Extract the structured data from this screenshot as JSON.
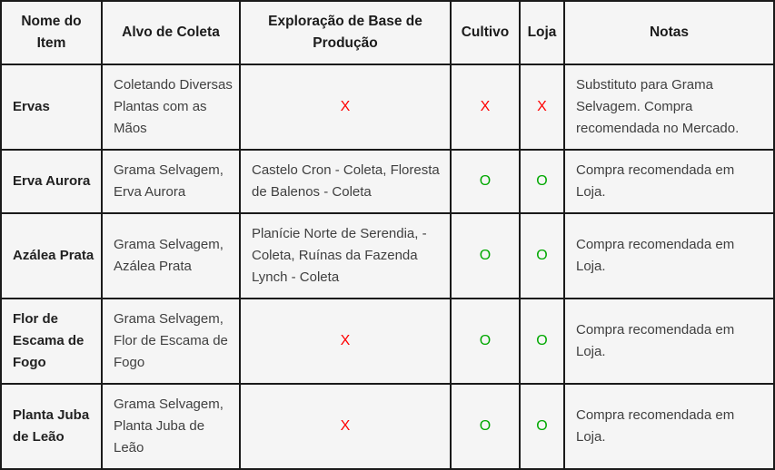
{
  "colors": {
    "x_mark": "#ff0000",
    "o_mark": "#00a800",
    "grid": "#1a1a1a",
    "cell_bg": "#f5f5f5"
  },
  "table": {
    "headers": [
      "Nome do\nItem",
      "Alvo de Coleta",
      "Exploração de Base de\nProdução",
      "Cultivo",
      "Loja",
      "Notas"
    ],
    "rows": [
      [
        {
          "type": "name",
          "text": "Ervas"
        },
        {
          "type": "text",
          "text": "Coletando Diversas\nPlantas com as\nMãos"
        },
        {
          "type": "x",
          "text": "X"
        },
        {
          "type": "x",
          "text": "X"
        },
        {
          "type": "x",
          "text": "X"
        },
        {
          "type": "text",
          "text": "Substituto para Grama\nSelvagem. Compra\nrecomendada no Mercado."
        }
      ],
      [
        {
          "type": "name",
          "text": "Erva Aurora"
        },
        {
          "type": "text",
          "text": "Grama Selvagem,\nErva Aurora"
        },
        {
          "type": "text",
          "text": "Castelo Cron - Coleta, Floresta\nde Balenos - Coleta"
        },
        {
          "type": "o",
          "text": "O"
        },
        {
          "type": "o",
          "text": "O"
        },
        {
          "type": "text",
          "text": "Compra recomendada em\nLoja."
        }
      ],
      [
        {
          "type": "name",
          "text": "Azálea Prata"
        },
        {
          "type": "text",
          "text": "Grama Selvagem,\nAzálea Prata"
        },
        {
          "type": "text",
          "text": "Planície Norte de Serendia, -\nColeta, Ruínas da Fazenda\nLynch - Coleta"
        },
        {
          "type": "o",
          "text": "O"
        },
        {
          "type": "o",
          "text": "O"
        },
        {
          "type": "text",
          "text": "Compra recomendada em\nLoja."
        }
      ],
      [
        {
          "type": "name",
          "text": "Flor de\nEscama de\nFogo"
        },
        {
          "type": "text",
          "text": "Grama Selvagem,\nFlor de Escama de\nFogo"
        },
        {
          "type": "x",
          "text": "X"
        },
        {
          "type": "o",
          "text": "O"
        },
        {
          "type": "o",
          "text": "O"
        },
        {
          "type": "text",
          "text": "Compra recomendada em\nLoja."
        }
      ],
      [
        {
          "type": "name",
          "text": "Planta Juba\nde Leão"
        },
        {
          "type": "text",
          "text": "Grama Selvagem,\nPlanta Juba de Leão"
        },
        {
          "type": "x",
          "text": "X"
        },
        {
          "type": "o",
          "text": "O"
        },
        {
          "type": "o",
          "text": "O"
        },
        {
          "type": "text",
          "text": "Compra recomendada em\nLoja."
        }
      ]
    ]
  }
}
